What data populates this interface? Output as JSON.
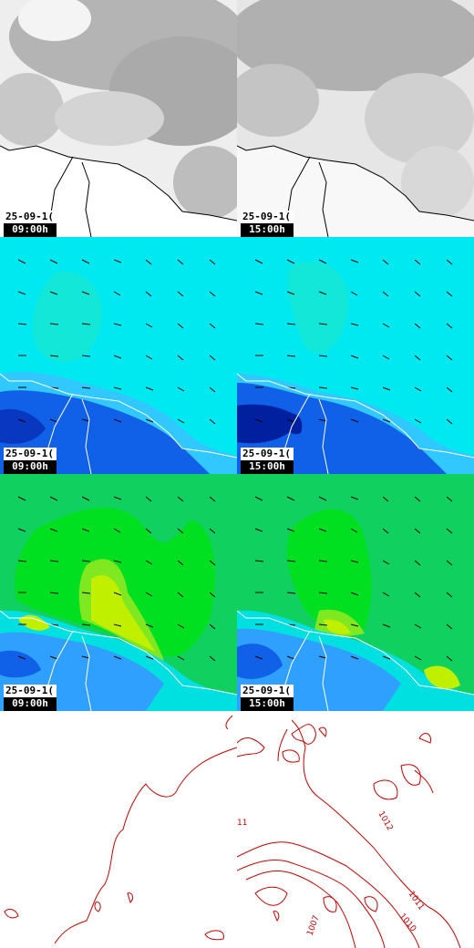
{
  "panels": [
    {
      "id": "cloud-0900",
      "date": "25-09-1(",
      "time": "09:00h"
    },
    {
      "id": "cloud-1500",
      "date": "25-09-1(",
      "time": "15:00h"
    },
    {
      "id": "wind-0900",
      "date": "25-09-1(",
      "time": "09:00h"
    },
    {
      "id": "wind-1500",
      "date": "25-09-1(",
      "time": "15:00h"
    },
    {
      "id": "temp-0900",
      "date": "25-09-1(",
      "time": "09:00h"
    },
    {
      "id": "temp-1500",
      "date": "25-09-1(",
      "time": "15:00h"
    }
  ],
  "pressure_labels": [
    "11",
    "1012",
    "1011",
    "1010",
    "1007"
  ],
  "colors": {
    "cloud_gray": "#a8a8a8",
    "coast": "#000000",
    "wind_bg": "#00e8f0",
    "wind_mid": "#30c8ff",
    "wind_blue": "#1060e8",
    "wind_dark": "#0020a0",
    "temp_green": "#10d060",
    "temp_bright": "#00e020",
    "temp_yellow": "#c0f000",
    "temp_cyan": "#00e0e0",
    "isobar": "#cc0000"
  }
}
